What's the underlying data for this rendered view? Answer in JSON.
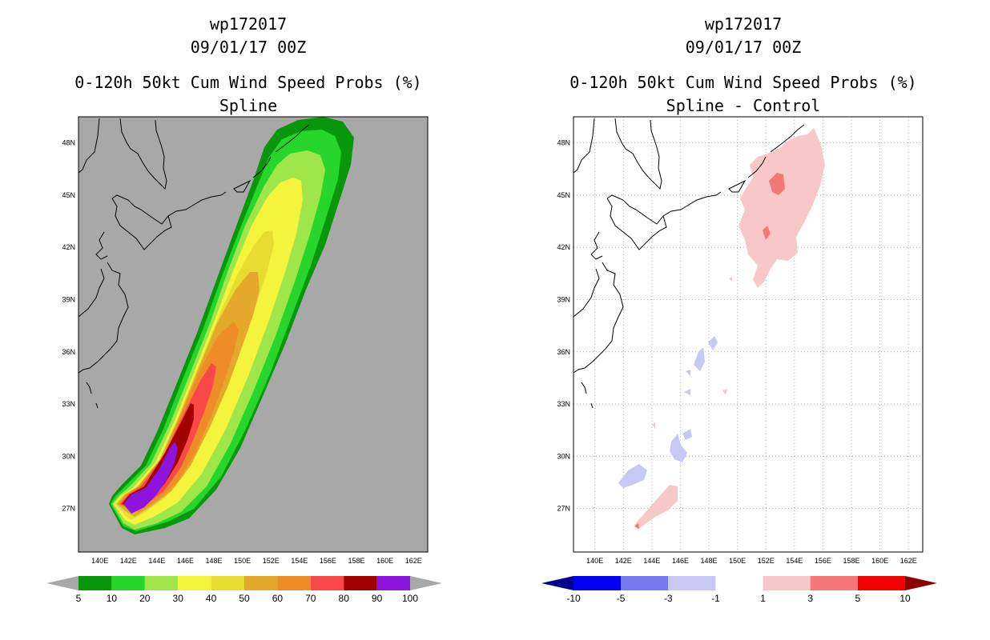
{
  "left_panel": {
    "title_lines": [
      "wp172017",
      "09/01/17 00Z"
    ],
    "product": "0-120h 50kt Cum Wind Speed Probs (%)",
    "subtitle": "Spline",
    "lon_ticks": [
      "140E",
      "142E",
      "144E",
      "146E",
      "148E",
      "150E",
      "152E",
      "154E",
      "156E",
      "158E",
      "160E",
      "162E"
    ],
    "lat_ticks": [
      "27N",
      "30N",
      "33N",
      "36N",
      "39N",
      "42N",
      "45N",
      "48N"
    ],
    "colorbar": {
      "labels": [
        "5",
        "10",
        "20",
        "30",
        "40",
        "50",
        "60",
        "70",
        "80",
        "90",
        "100"
      ],
      "colors": [
        "#a8a8a8",
        "#08960a",
        "#26d62a",
        "#9ee64a",
        "#f4f43c",
        "#e6dc32",
        "#e4a82a",
        "#ee8c28",
        "#f84848",
        "#a00000",
        "#8c14dc",
        "#a8a8a8"
      ]
    }
  },
  "right_panel": {
    "title_lines": [
      "wp172017",
      "09/01/17 00Z"
    ],
    "product": "0-120h 50kt Cum Wind Speed Probs (%)",
    "subtitle": "Spline - Control",
    "lon_ticks": [
      "140E",
      "142E",
      "144E",
      "146E",
      "148E",
      "150E",
      "152E",
      "154E",
      "156E",
      "158E",
      "160E",
      "162E"
    ],
    "lat_ticks": [
      "27N",
      "30N",
      "33N",
      "36N",
      "39N",
      "42N",
      "45N",
      "48N"
    ],
    "colorbar": {
      "labels": [
        "-10",
        "-5",
        "-3",
        "-1",
        "1",
        "3",
        "5",
        "10"
      ],
      "colors": [
        "#00008c",
        "#0000f0",
        "#7878f0",
        "#c8c8f4",
        "#ffffff",
        "#f8c8c8",
        "#f47878",
        "#f00000",
        "#8c0000"
      ]
    }
  },
  "map_extent": {
    "lon_min": 138.5,
    "lon_max": 163,
    "lat_min": 24.5,
    "lat_max": 49.5
  }
}
